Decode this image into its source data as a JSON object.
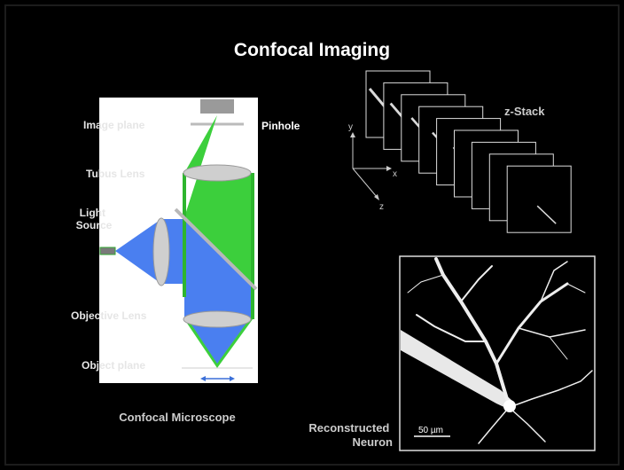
{
  "title": "Confocal Imaging",
  "microscope": {
    "labels": {
      "image_plane": "Image plane",
      "pinhole": "Pinhole",
      "tubus_lens": "Tubus Lens",
      "light_source": [
        "Light",
        "Source"
      ],
      "objective_lens": "Objective Lens",
      "object_plane": "Object plane"
    },
    "caption": "Confocal Microscope"
  },
  "z_stack": {
    "title": "z-Stack",
    "axes": {
      "x": "x",
      "y": "y",
      "z": "z"
    }
  },
  "neuron": {
    "caption": [
      "Reconstructed",
      "Neuron"
    ],
    "scale_bar": "50 µm"
  }
}
